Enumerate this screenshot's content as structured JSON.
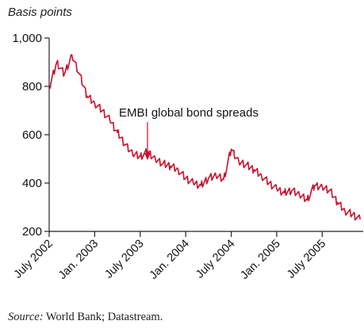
{
  "chart_data": {
    "type": "line",
    "title": "",
    "ylabel": "Basis points",
    "ylim": [
      200,
      1000
    ],
    "yticks": [
      200,
      400,
      600,
      800,
      1000
    ],
    "ytick_labels": [
      "200",
      "400",
      "600",
      "800",
      "1,000"
    ],
    "xlim": [
      "2002-07",
      "2005-12"
    ],
    "xticks": [
      "2002-07",
      "2003-01",
      "2003-07",
      "2004-01",
      "2004-07",
      "2005-01",
      "2005-07"
    ],
    "xtick_labels": [
      "July 2002",
      "Jan. 2003",
      "July 2003",
      "Jan. 2004",
      "July 2004",
      "Jan. 2005",
      "July 2005"
    ],
    "line_color": "#c8102e",
    "annotation": {
      "text": "EMBI global bond spreads",
      "points_to": "2003-12"
    },
    "series": [
      {
        "name": "EMBI global bond spreads",
        "x": [
          "2002-07",
          "2002-08",
          "2002-09",
          "2002-10",
          "2002-11",
          "2002-12",
          "2003-01",
          "2003-02",
          "2003-03",
          "2003-04",
          "2003-05",
          "2003-06",
          "2003-07",
          "2003-08",
          "2003-09",
          "2003-10",
          "2003-11",
          "2003-12",
          "2004-01",
          "2004-02",
          "2004-03",
          "2004-04",
          "2004-05",
          "2004-06",
          "2004-07",
          "2004-08",
          "2004-09",
          "2004-10",
          "2004-11",
          "2004-12",
          "2005-01",
          "2005-02",
          "2005-03",
          "2005-04",
          "2005-05",
          "2005-06",
          "2005-07",
          "2005-08",
          "2005-09",
          "2005-10",
          "2005-11",
          "2005-12"
        ],
        "values": [
          790,
          900,
          850,
          930,
          850,
          760,
          730,
          700,
          660,
          610,
          560,
          520,
          510,
          530,
          500,
          480,
          470,
          455,
          420,
          400,
          390,
          420,
          430,
          415,
          540,
          490,
          475,
          455,
          430,
          400,
          375,
          360,
          370,
          350,
          330,
          390,
          385,
          370,
          320,
          285,
          270,
          250
        ]
      }
    ]
  },
  "source": {
    "label": "Source:",
    "text": " World Bank; Datastream."
  }
}
